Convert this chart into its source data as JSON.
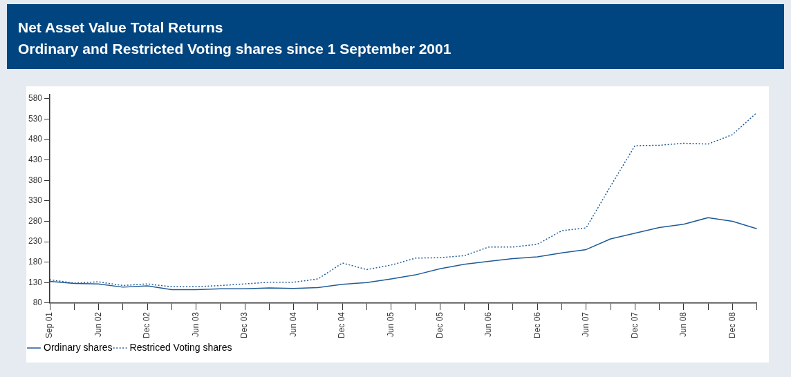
{
  "chart_data": {
    "type": "line",
    "title": "Net Asset Value Total Returns",
    "subtitle": "Ordinary and Restricted Voting shares since 1 September 2001",
    "categories": [
      "Sep 01",
      null,
      "Jun 02",
      null,
      "Dec 02",
      null,
      "Jun 03",
      null,
      "Dec 03",
      null,
      "Jun 04",
      null,
      "Dec 04",
      null,
      "Jun 05",
      null,
      "Dec 05",
      null,
      "Jun 06",
      null,
      "Dec 06",
      null,
      "Jun 07",
      null,
      "Dec 07",
      null,
      "Jun 08",
      null,
      "Dec 08",
      null
    ],
    "series": [
      {
        "name": "Ordinary shares",
        "color": "#1f5a96",
        "line_style": "solid",
        "values": [
          133,
          128,
          127,
          119,
          122,
          113,
          113,
          115,
          115,
          117,
          116,
          118,
          126,
          130,
          139,
          149,
          164,
          175,
          182,
          189,
          193,
          203,
          211,
          237,
          251,
          265,
          273,
          289,
          280,
          262
        ]
      },
      {
        "name": "Restriced Voting shares",
        "color": "#1f5a96",
        "line_style": "dotted",
        "values": [
          137,
          129,
          132,
          123,
          127,
          120,
          120,
          123,
          127,
          131,
          131,
          139,
          178,
          162,
          173,
          190,
          191,
          196,
          217,
          217,
          224,
          257,
          264,
          366,
          465,
          466,
          471,
          469,
          492,
          546
        ]
      }
    ],
    "ylim": [
      80,
      590
    ],
    "yticks": [
      80,
      130,
      180,
      230,
      280,
      330,
      380,
      430,
      480,
      530,
      580
    ],
    "grid": false,
    "legend": "bottom left",
    "marker": "none"
  }
}
